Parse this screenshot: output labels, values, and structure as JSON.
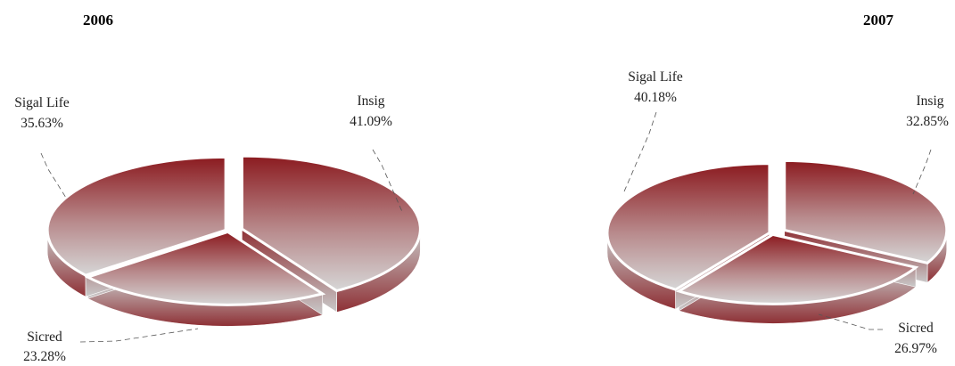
{
  "chart_data": [
    {
      "type": "pie",
      "title": "2006",
      "slices": [
        {
          "label": "Insig",
          "value": 41.09,
          "value_label": "41.09%"
        },
        {
          "label": "Sicred",
          "value": 23.28,
          "value_label": "23.28%"
        },
        {
          "label": "Sigal Life",
          "value": 35.63,
          "value_label": "35.63%"
        }
      ],
      "exploded_slice": "Insig",
      "style": "3d",
      "colors": {
        "top_dark": "#8b1a1f",
        "top_light": "#d6d6d6",
        "side_dark": "#8e3035",
        "side_light": "#c9c9c9"
      }
    },
    {
      "type": "pie",
      "title": "2007",
      "slices": [
        {
          "label": "Insig",
          "value": 32.85,
          "value_label": "32.85%"
        },
        {
          "label": "Sicred",
          "value": 26.97,
          "value_label": "26.97%"
        },
        {
          "label": "Sigal Life",
          "value": 40.18,
          "value_label": "40.18%"
        }
      ],
      "exploded_slice": "Insig",
      "style": "3d",
      "colors": {
        "top_dark": "#8b1a1f",
        "top_light": "#d6d6d6",
        "side_dark": "#8e3035",
        "side_light": "#c9c9c9"
      }
    }
  ]
}
